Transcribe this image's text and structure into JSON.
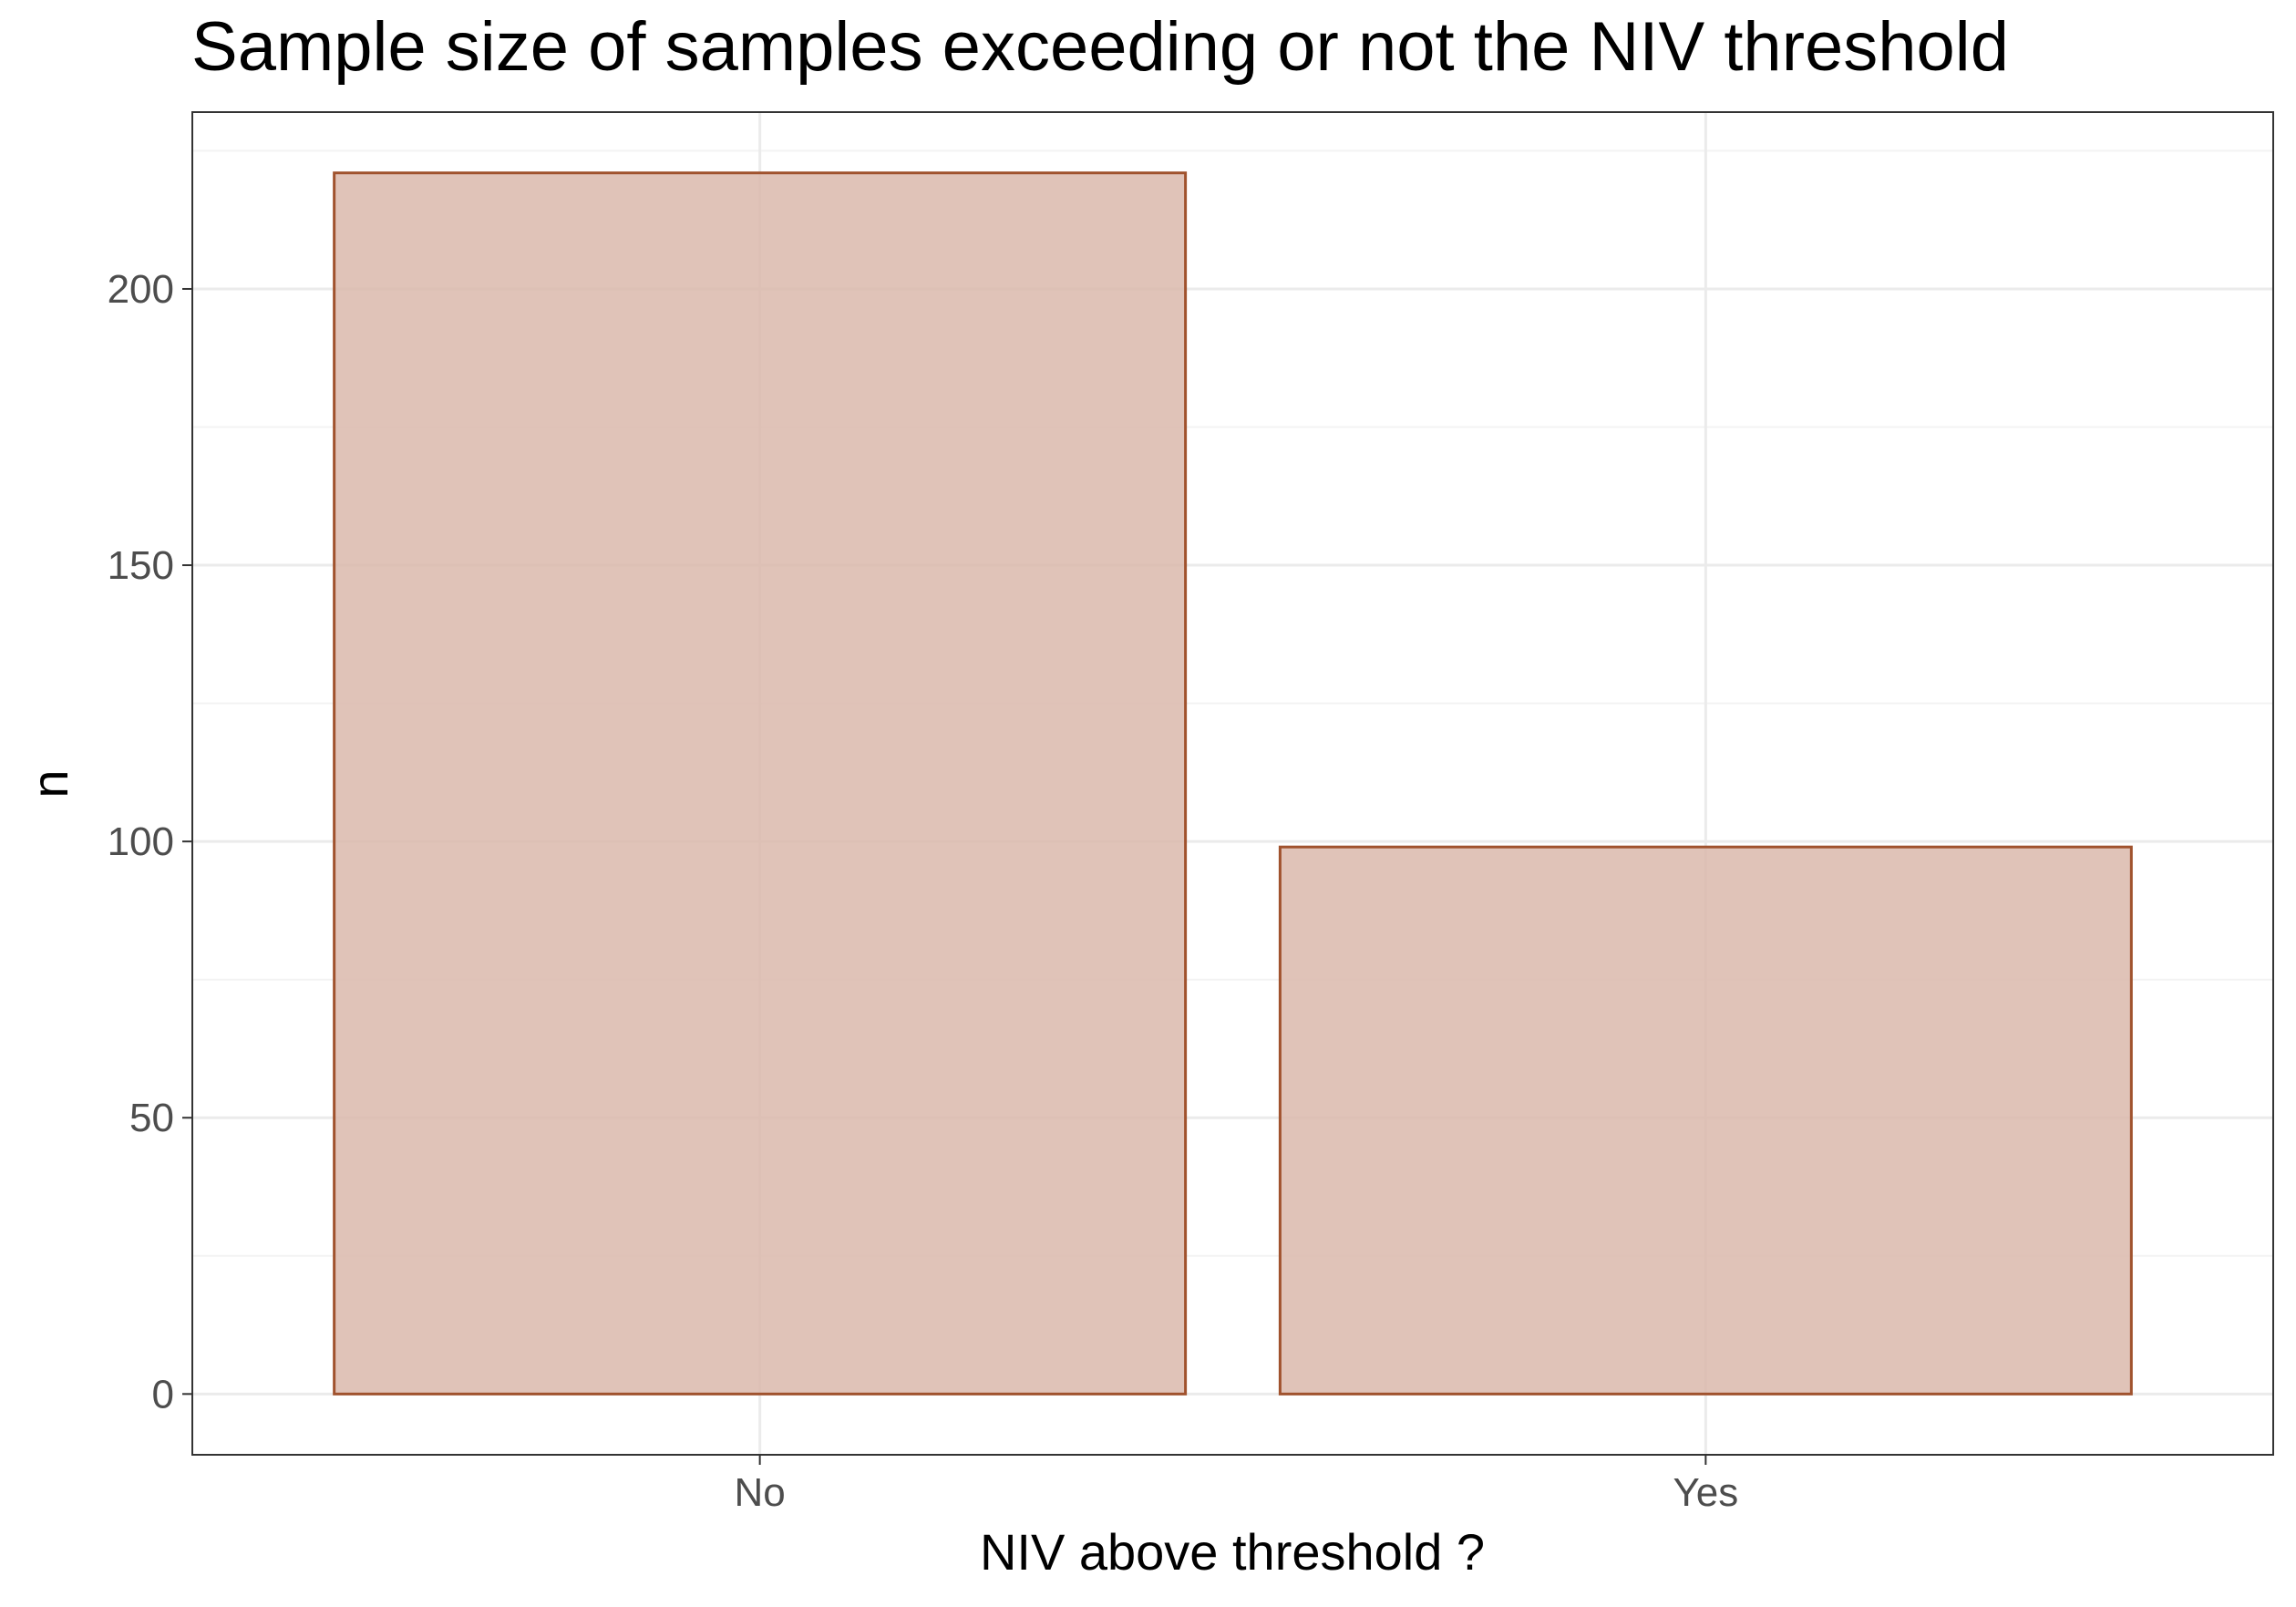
{
  "chart_data": {
    "type": "bar",
    "title": "Sample size of samples exceeding or not the NIV threshold",
    "xlabel": "NIV above threshold ?",
    "ylabel": "n",
    "categories": [
      "No",
      "Yes"
    ],
    "values": [
      221,
      99
    ],
    "ylim": [
      -11,
      232
    ],
    "yticks": [
      0,
      50,
      100,
      150,
      200
    ],
    "grid": true,
    "legend": "none",
    "colors": {
      "bar_fill": "#dab9ab",
      "bar_stroke": "#a0522d",
      "grid_major": "#ebebeb",
      "grid_minor": "#f3f3f3",
      "panel_border": "#333333",
      "tick_text": "#4d4d4d"
    }
  }
}
